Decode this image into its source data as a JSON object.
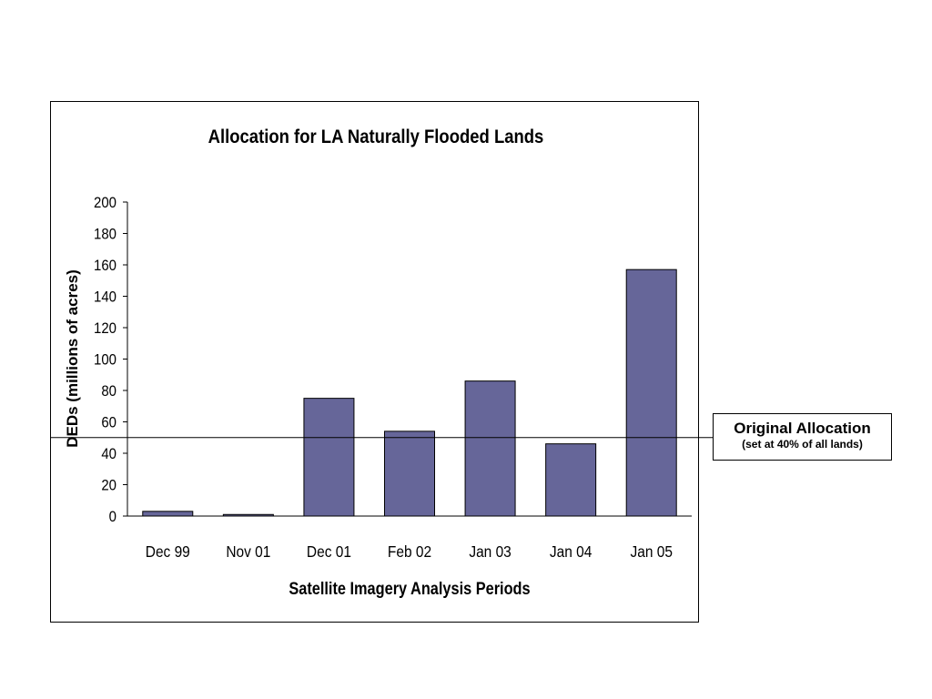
{
  "chart_data": {
    "type": "bar",
    "title": "Allocation for LA Naturally Flooded Lands",
    "xlabel": "Satellite Imagery Analysis Periods",
    "ylabel": "DEDs (millions of acres)",
    "categories": [
      "Dec 99",
      "Nov 01",
      "Dec 01",
      "Feb 02",
      "Jan 03",
      "Jan 04",
      "Jan 05"
    ],
    "values": [
      3,
      1,
      75,
      54,
      86,
      46,
      157
    ],
    "ylim": [
      0,
      200
    ],
    "yticks": [
      0,
      20,
      40,
      60,
      80,
      100,
      120,
      140,
      160,
      180,
      200
    ],
    "grid": false,
    "bar_color": "#666699",
    "reference_line": {
      "value": 50,
      "label": "Original Allocation",
      "sublabel": "(set at 40% of all lands)"
    }
  }
}
